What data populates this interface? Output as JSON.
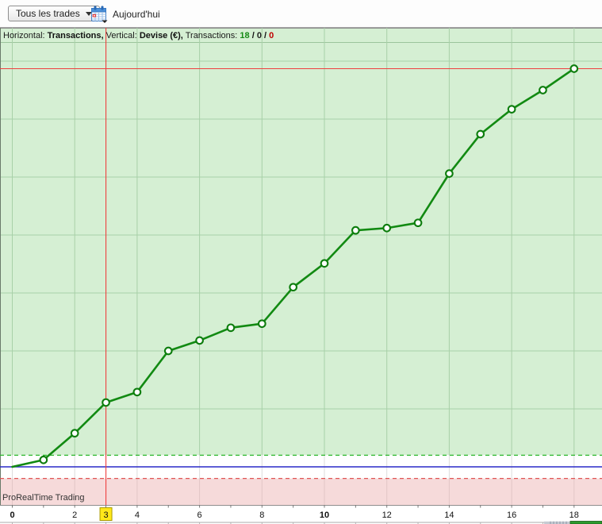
{
  "toolbar": {
    "trades_dropdown": {
      "label": "Tous les trades"
    },
    "today": {
      "label": "Aujourd'hui"
    }
  },
  "header": {
    "horizontal_label": "Horizontal:",
    "horizontal_value": "Transactions,",
    "vertical_label": "Vertical:",
    "vertical_value": "Devise (€),",
    "transactions_label": "Transactions:",
    "wins": "18",
    "separator1": "/",
    "breakeven": "0",
    "separator2": "/",
    "losses": "0",
    "wins_color": "#168a16",
    "breakeven_color": "#222222",
    "losses_color": "#c00000"
  },
  "watermark": "ProRealTime Trading",
  "chart_data": {
    "type": "line",
    "title": "Cumulative result per transaction",
    "xlabel": "Transactions",
    "ylabel": "Devise (€)",
    "x": [
      0,
      1,
      2,
      3,
      4,
      5,
      6,
      7,
      8,
      9,
      10,
      11,
      12,
      13,
      14,
      15,
      16,
      17,
      18
    ],
    "values": [
      0,
      0.12,
      0.58,
      1.11,
      1.29,
      2.0,
      2.18,
      2.4,
      2.47,
      3.1,
      3.51,
      4.08,
      4.12,
      4.21,
      5.06,
      5.74,
      6.17,
      6.5,
      6.87
    ],
    "y_axis_note": "y-axis has no printed labels; values expressed in horizontal-gridline units above the zero baseline",
    "xlim": [
      0,
      18.9
    ],
    "grid": true,
    "legend": "none",
    "marker": "open-circle",
    "x_tick_labels": [
      0,
      2,
      3,
      4,
      6,
      8,
      10,
      12,
      14,
      16,
      18
    ],
    "bold_x_tick_labels": [
      0,
      10
    ],
    "highlighted_x_tick": 3,
    "zero_baseline": 0,
    "upper_threshold": 0.2,
    "lower_threshold": -0.2,
    "crosshair": {
      "x": 3,
      "y_value": 6.87
    },
    "colors": {
      "line": "#128a12",
      "marker_fill": "#ffffff",
      "marker_stroke": "#0d7d0d",
      "zero_line": "#2a2ac8",
      "upper_threshold_line": "#2eb82e",
      "lower_threshold_line": "#e05555",
      "crosshair": "#ee4040",
      "bg_positive": "#d5efd3",
      "bg_neutral": "#ffffff",
      "bg_negative": "#f6dada",
      "grid_on_green": "#a8d0a8",
      "grid_on_white": "#dcdcdc",
      "grid_on_pink": "#e2c6c6",
      "tick_highlight_bg": "#ffe81a",
      "tick_highlight_border": "#a89a00",
      "axis_text": "#111111"
    }
  }
}
